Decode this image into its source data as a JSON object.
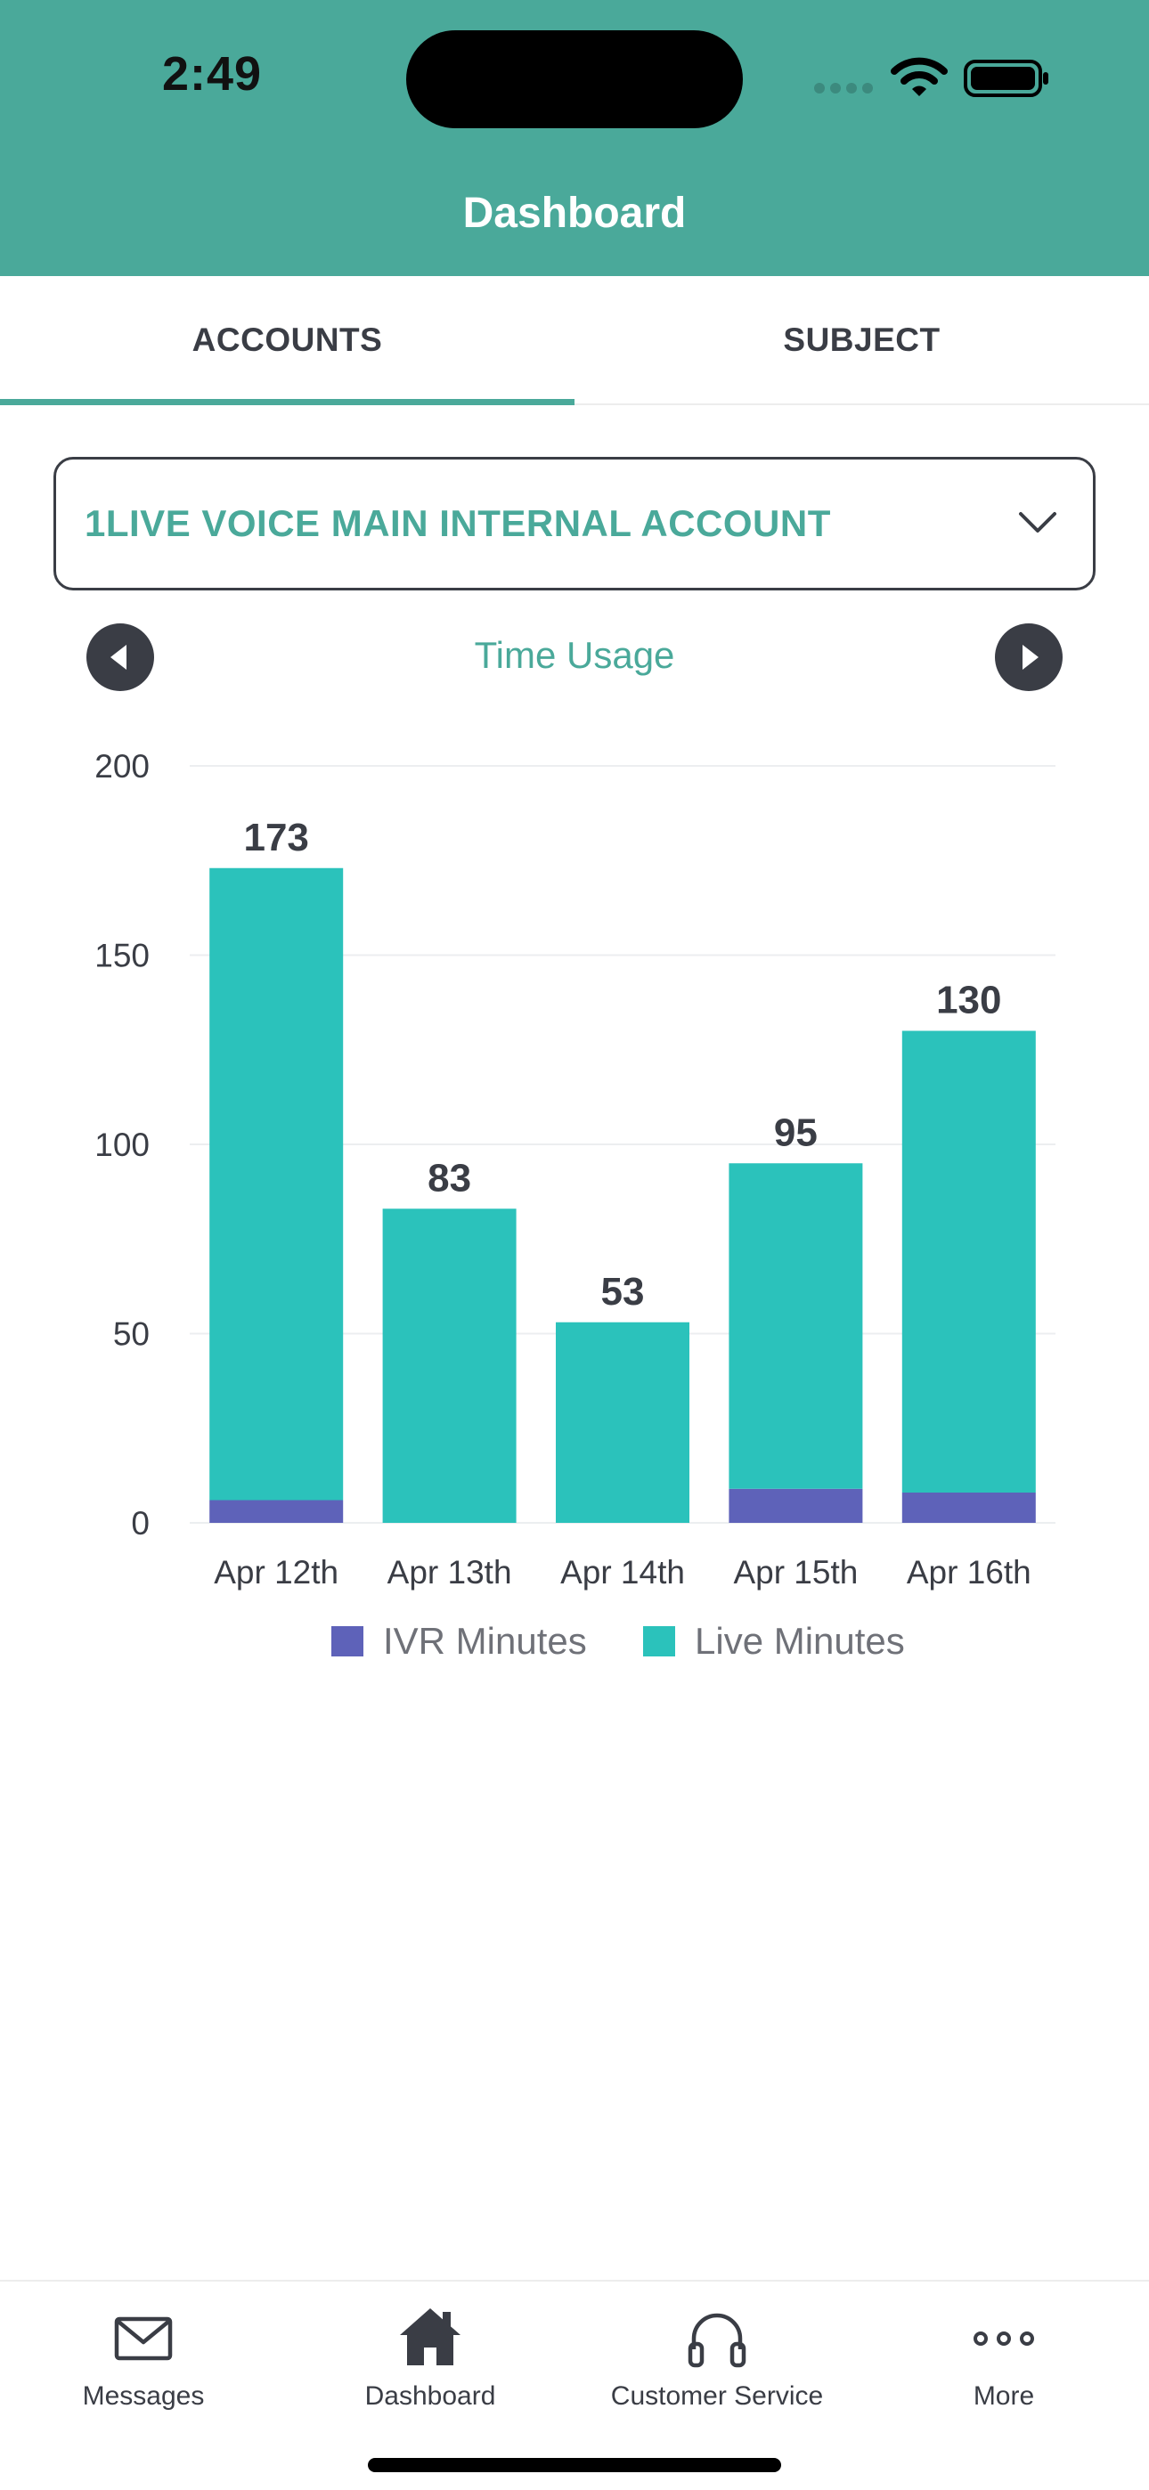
{
  "status_bar": {
    "time": "2:49"
  },
  "header": {
    "title": "Dashboard"
  },
  "tabs": [
    {
      "label": "ACCOUNTS",
      "active": true
    },
    {
      "label": "SUBJECT",
      "active": false
    }
  ],
  "account_select": {
    "value": "1LIVE VOICE MAIN INTERNAL ACCOUNT",
    "icon": "chevron-down-icon"
  },
  "chart_nav": {
    "prev_icon": "chevron-left-circle-icon",
    "next_icon": "chevron-right-circle-icon"
  },
  "chart_data": {
    "type": "bar",
    "stacked": true,
    "title": "Time Usage",
    "categories": [
      "Apr 12th",
      "Apr 13th",
      "Apr 14th",
      "Apr 15th",
      "Apr 16th"
    ],
    "series": [
      {
        "name": "IVR Minutes",
        "color": "#5e62b9",
        "values": [
          6,
          0,
          0,
          9,
          8
        ]
      },
      {
        "name": "Live Minutes",
        "color": "#2bc2bb",
        "values": [
          167,
          83,
          53,
          86,
          122
        ]
      }
    ],
    "totals": [
      173,
      83,
      53,
      95,
      130
    ],
    "ylim": [
      0,
      200
    ],
    "yticks": [
      0,
      50,
      100,
      150,
      200
    ],
    "grid": true,
    "legend": "bottom"
  },
  "bottom_nav": [
    {
      "label": "Messages",
      "icon": "envelope-icon"
    },
    {
      "label": "Dashboard",
      "icon": "home-icon"
    },
    {
      "label": "Customer Service",
      "icon": "headphones-icon"
    },
    {
      "label": "More",
      "icon": "ellipsis-icon"
    }
  ],
  "colors": {
    "brand": "#4aa99a",
    "dark": "#3a3d45",
    "live": "#2bc2bb",
    "ivr": "#5e62b9"
  }
}
